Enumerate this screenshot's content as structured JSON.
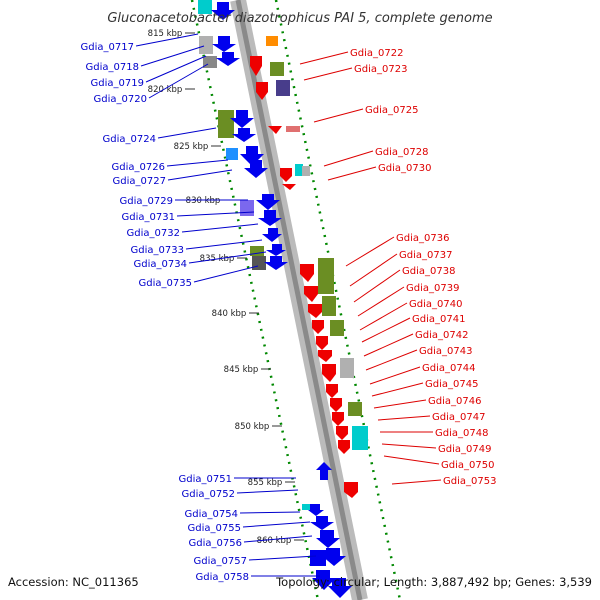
{
  "title": "Gluconacetobacter diazotrophicus PAI 5, complete genome",
  "footer": {
    "accession": "Accession: NC_011365",
    "info": "Topology: circular; Length: 3,887,492 bp; Genes: 3,539"
  },
  "colors": {
    "backbone": "#8a8a8a",
    "forward_label": "#0000cc",
    "reverse_label": "#dd0000",
    "gc_track": "#008800"
  },
  "scale": {
    "ticks": [
      {
        "label": "815 kbp",
        "kb": 815
      },
      {
        "label": "820 kbp",
        "kb": 820
      },
      {
        "label": "825 kbp",
        "kb": 825
      },
      {
        "label": "830 kbp",
        "kb": 830
      },
      {
        "label": "835 kbp",
        "kb": 835
      },
      {
        "label": "840 kbp",
        "kb": 840
      },
      {
        "label": "845 kbp",
        "kb": 845
      },
      {
        "label": "850 kbp",
        "kb": 850
      },
      {
        "label": "855 kbp",
        "kb": 855
      },
      {
        "label": "860 kbp",
        "kb": 860
      }
    ]
  },
  "forward_genes": [
    {
      "label": "Gdia_0717"
    },
    {
      "label": "Gdia_0718"
    },
    {
      "label": "Gdia_0719"
    },
    {
      "label": "Gdia_0720"
    },
    {
      "label": "Gdia_0724"
    },
    {
      "label": "Gdia_0726"
    },
    {
      "label": "Gdia_0727"
    },
    {
      "label": "Gdia_0729"
    },
    {
      "label": "Gdia_0731"
    },
    {
      "label": "Gdia_0732"
    },
    {
      "label": "Gdia_0733"
    },
    {
      "label": "Gdia_0734"
    },
    {
      "label": "Gdia_0735"
    },
    {
      "label": "Gdia_0751"
    },
    {
      "label": "Gdia_0752"
    },
    {
      "label": "Gdia_0754"
    },
    {
      "label": "Gdia_0755"
    },
    {
      "label": "Gdia_0756"
    },
    {
      "label": "Gdia_0757"
    },
    {
      "label": "Gdia_0758"
    }
  ],
  "reverse_genes": [
    {
      "label": "Gdia_0722"
    },
    {
      "label": "Gdia_0723"
    },
    {
      "label": "Gdia_0725"
    },
    {
      "label": "Gdia_0728"
    },
    {
      "label": "Gdia_0730"
    },
    {
      "label": "Gdia_0736"
    },
    {
      "label": "Gdia_0737"
    },
    {
      "label": "Gdia_0738"
    },
    {
      "label": "Gdia_0739"
    },
    {
      "label": "Gdia_0740"
    },
    {
      "label": "Gdia_0741"
    },
    {
      "label": "Gdia_0742"
    },
    {
      "label": "Gdia_0743"
    },
    {
      "label": "Gdia_0744"
    },
    {
      "label": "Gdia_0745"
    },
    {
      "label": "Gdia_0746"
    },
    {
      "label": "Gdia_0747"
    },
    {
      "label": "Gdia_0748"
    },
    {
      "label": "Gdia_0749"
    },
    {
      "label": "Gdia_0750"
    },
    {
      "label": "Gdia_0753"
    }
  ]
}
